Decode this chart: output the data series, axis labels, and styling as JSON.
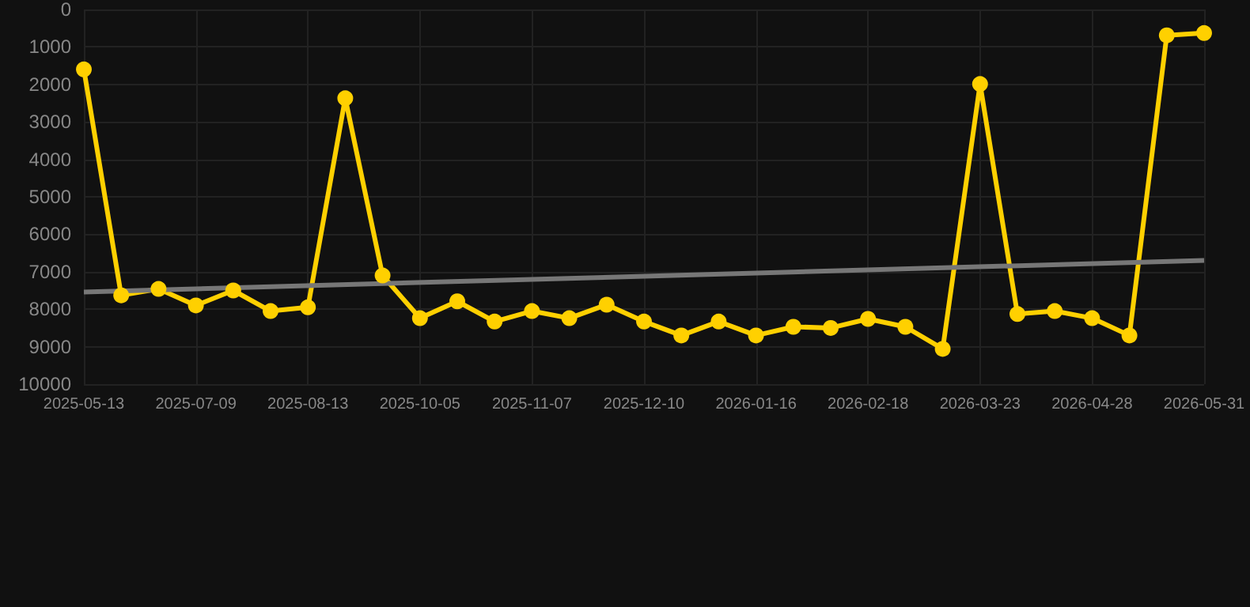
{
  "chart_data": {
    "type": "line",
    "categories": [
      "2025-05-13",
      null,
      null,
      "2025-07-09",
      null,
      null,
      "2025-08-13",
      null,
      null,
      "2025-10-05",
      null,
      null,
      "2025-11-07",
      null,
      null,
      "2025-12-10",
      null,
      null,
      "2026-01-16",
      null,
      null,
      "2026-02-18",
      null,
      null,
      "2026-03-23",
      null,
      null,
      "2026-04-28",
      null,
      null,
      "2026-05-31"
    ],
    "series": [
      {
        "color": "#ffd000",
        "values": [
          1600,
          7630,
          7460,
          7900,
          7500,
          8050,
          7950,
          2370,
          7100,
          8240,
          7790,
          8330,
          8050,
          8240,
          7880,
          8330,
          8700,
          8330,
          8700,
          8470,
          8500,
          8260,
          8470,
          9060,
          1990,
          8130,
          8050,
          8240,
          8700,
          690,
          630
        ]
      },
      {
        "type": "line",
        "color": "#777777",
        "marker": "none",
        "values": [
          7540,
          null,
          null,
          null,
          null,
          null,
          null,
          null,
          null,
          null,
          null,
          null,
          null,
          null,
          null,
          null,
          null,
          null,
          null,
          null,
          null,
          null,
          null,
          null,
          null,
          null,
          null,
          null,
          null,
          null,
          6700
        ]
      }
    ],
    "ylim": [
      10000,
      0
    ],
    "yticks": [
      0,
      1000,
      2000,
      3000,
      4000,
      5000,
      6000,
      7000,
      8000,
      9000,
      10000
    ],
    "grid": true,
    "marker": "circle",
    "line_style": "solid"
  }
}
